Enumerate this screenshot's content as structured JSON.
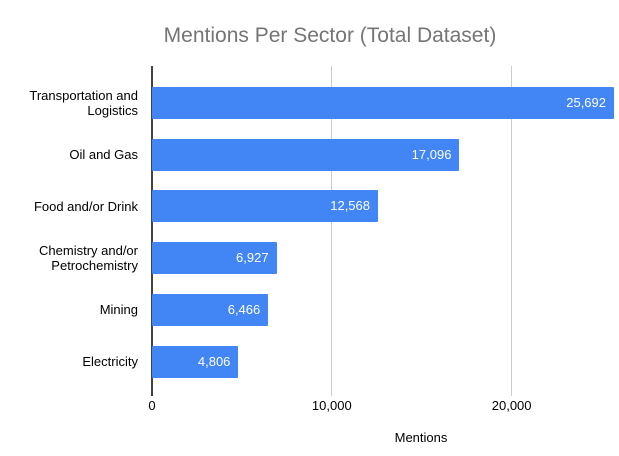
{
  "chart_data": {
    "type": "bar",
    "orientation": "horizontal",
    "title": "Mentions Per Sector (Total Dataset)",
    "xlabel": "Mentions",
    "ylabel": "",
    "categories": [
      "Transportation and Logistics",
      "Oil and Gas",
      "Food and/or Drink",
      "Chemistry and/or Petrochemistry",
      "Mining",
      "Electricity"
    ],
    "values": [
      25692,
      17096,
      12568,
      6927,
      6466,
      4806
    ],
    "value_labels": [
      "25,692",
      "17,096",
      "12,568",
      "6,927",
      "6,466",
      "4,806"
    ],
    "xlim": [
      0,
      25692
    ],
    "xticks": [
      {
        "value": 0,
        "label": "0"
      },
      {
        "value": 10000,
        "label": "10,000"
      },
      {
        "value": 20000,
        "label": "20,000"
      }
    ],
    "grid": true,
    "legend": "none",
    "colors": {
      "bar": "#4285F4",
      "title": "#757575",
      "category_label": "#000000",
      "value_label": "#ffffff",
      "axis_line": "#424242",
      "gridline": "#cccccc",
      "tick_label": "#000000",
      "background": "#ffffff"
    }
  }
}
